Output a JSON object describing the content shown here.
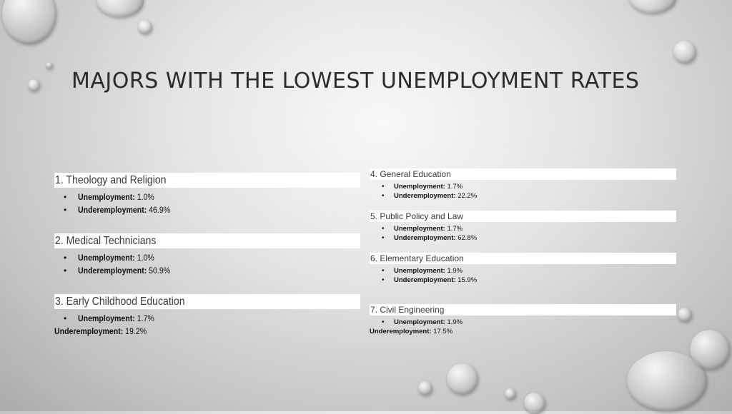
{
  "slide": {
    "title": "MAJORS WITH THE LOWEST UNEMPLOYMENT RATES"
  },
  "left_items": [
    {
      "heading": "1. Theology and Religion",
      "unemployment_label": "Unemployment:",
      "unemployment_value": "1.0%",
      "underemployment_label": "Underemployment:",
      "underemployment_value": "46.9%"
    },
    {
      "heading": "2. Medical Technicians",
      "unemployment_label": "Unemployment:",
      "unemployment_value": "1.0%",
      "underemployment_label": "Underemployment:",
      "underemployment_value": "50.9%"
    },
    {
      "heading": "3. Early Childhood Education",
      "unemployment_label": "Unemployment:",
      "unemployment_value": "1.7%",
      "underemployment_label": "Underemployment:",
      "underemployment_value": "19.2%"
    }
  ],
  "right_items": [
    {
      "heading": "4. General Education",
      "unemployment_label": "Unemployment:",
      "unemployment_value": "1.7%",
      "underemployment_label": "Underemployment:",
      "underemployment_value": "22.2%"
    },
    {
      "heading": "5. Public Policy and Law",
      "unemployment_label": "Unemployment:",
      "unemployment_value": "1.7%",
      "underemployment_label": "Underemployment:",
      "underemployment_value": "62.8%"
    },
    {
      "heading": "6. Elementary Education",
      "unemployment_label": "Unemployment:",
      "unemployment_value": "1.9%",
      "underemployment_label": "Underemployment:",
      "underemployment_value": "15.9%"
    },
    {
      "heading": "7. Civil Engineering",
      "unemployment_label": "Unemployment:",
      "unemployment_value": "1.9%",
      "underemployment_label": "Underemployment:",
      "underemployment_value": "17.5%"
    }
  ]
}
